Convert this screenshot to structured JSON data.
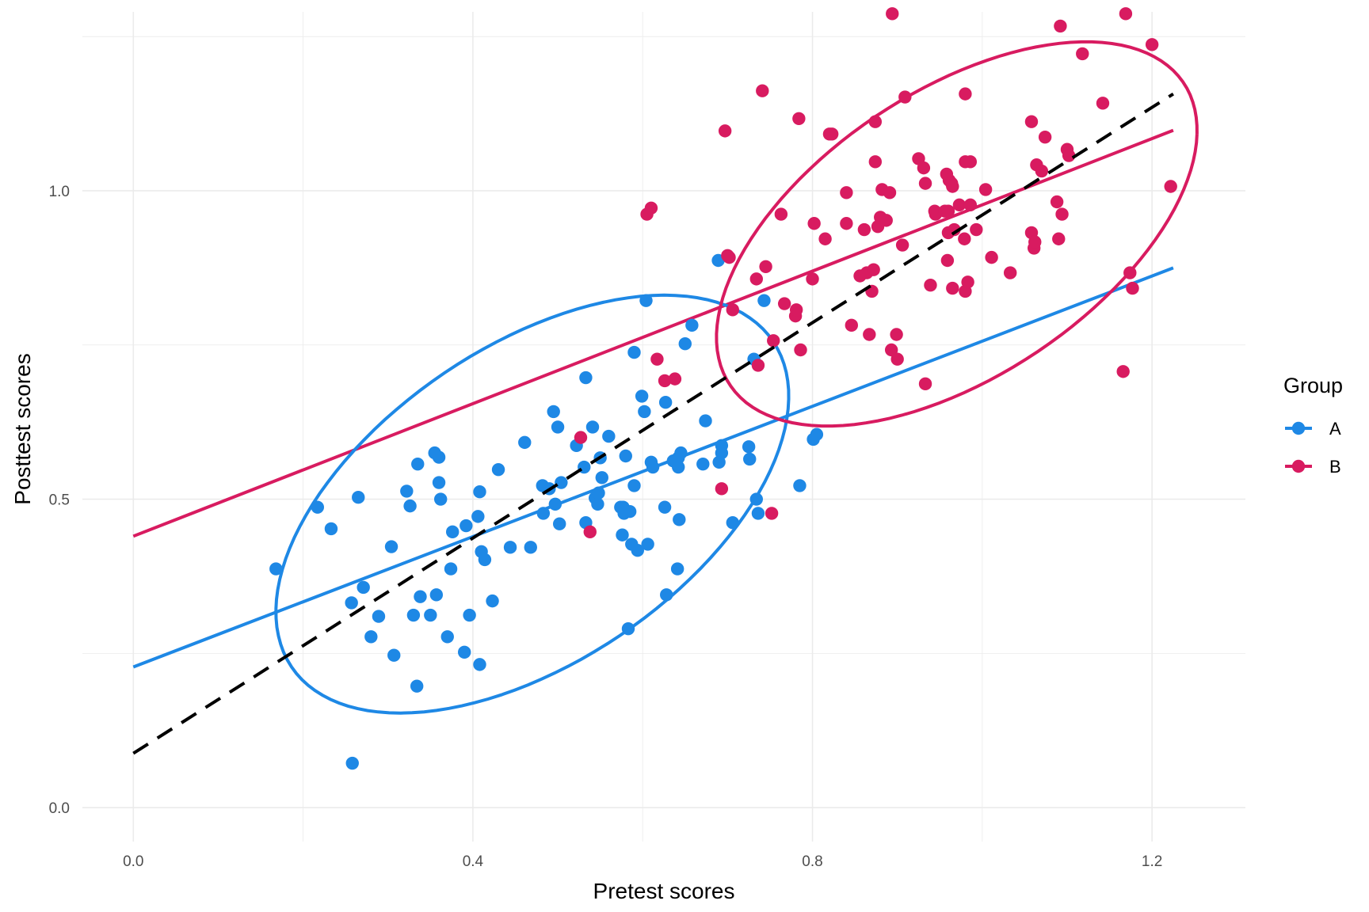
{
  "chart_data": {
    "type": "scatter",
    "title": "",
    "xlabel": "Pretest scores",
    "ylabel": "Posttest scores",
    "xlim": [
      -0.06,
      1.31
    ],
    "ylim": [
      -0.055,
      1.29
    ],
    "x_ticks": [
      0.0,
      0.4,
      0.8,
      1.2
    ],
    "x_tick_labels": [
      "0.0",
      "0.4",
      "0.8",
      "1.2"
    ],
    "y_ticks": [
      0.0,
      0.5,
      1.0
    ],
    "y_tick_labels": [
      "0.0",
      "0.5",
      "1.0"
    ],
    "grid": true,
    "legend": {
      "title": "Group",
      "position": "right"
    },
    "series": [
      {
        "name": "A",
        "color": "#1E88E5",
        "points": [
          [
            0.168,
            0.387
          ],
          [
            0.217,
            0.487
          ],
          [
            0.233,
            0.452
          ],
          [
            0.265,
            0.503
          ],
          [
            0.257,
            0.332
          ],
          [
            0.271,
            0.357
          ],
          [
            0.28,
            0.277
          ],
          [
            0.289,
            0.31
          ],
          [
            0.304,
            0.423
          ],
          [
            0.307,
            0.247
          ],
          [
            0.322,
            0.513
          ],
          [
            0.326,
            0.489
          ],
          [
            0.33,
            0.312
          ],
          [
            0.335,
            0.557
          ],
          [
            0.338,
            0.342
          ],
          [
            0.35,
            0.312
          ],
          [
            0.355,
            0.575
          ],
          [
            0.357,
            0.345
          ],
          [
            0.36,
            0.568
          ],
          [
            0.36,
            0.527
          ],
          [
            0.362,
            0.5
          ],
          [
            0.37,
            0.277
          ],
          [
            0.374,
            0.387
          ],
          [
            0.376,
            0.447
          ],
          [
            0.39,
            0.252
          ],
          [
            0.392,
            0.457
          ],
          [
            0.396,
            0.312
          ],
          [
            0.406,
            0.472
          ],
          [
            0.408,
            0.512
          ],
          [
            0.41,
            0.415
          ],
          [
            0.414,
            0.402
          ],
          [
            0.423,
            0.335
          ],
          [
            0.43,
            0.548
          ],
          [
            0.444,
            0.422
          ],
          [
            0.461,
            0.592
          ],
          [
            0.468,
            0.422
          ],
          [
            0.482,
            0.522
          ],
          [
            0.483,
            0.477
          ],
          [
            0.49,
            0.517
          ],
          [
            0.495,
            0.642
          ],
          [
            0.497,
            0.492
          ],
          [
            0.5,
            0.617
          ],
          [
            0.502,
            0.46
          ],
          [
            0.504,
            0.527
          ],
          [
            0.522,
            0.587
          ],
          [
            0.531,
            0.552
          ],
          [
            0.533,
            0.462
          ],
          [
            0.533,
            0.697
          ],
          [
            0.541,
            0.617
          ],
          [
            0.544,
            0.502
          ],
          [
            0.547,
            0.492
          ],
          [
            0.548,
            0.51
          ],
          [
            0.55,
            0.567
          ],
          [
            0.552,
            0.535
          ],
          [
            0.56,
            0.602
          ],
          [
            0.574,
            0.487
          ],
          [
            0.576,
            0.442
          ],
          [
            0.577,
            0.487
          ],
          [
            0.578,
            0.477
          ],
          [
            0.58,
            0.57
          ],
          [
            0.583,
            0.29
          ],
          [
            0.585,
            0.48
          ],
          [
            0.587,
            0.427
          ],
          [
            0.59,
            0.522
          ],
          [
            0.59,
            0.738
          ],
          [
            0.594,
            0.417
          ],
          [
            0.599,
            0.667
          ],
          [
            0.602,
            0.642
          ],
          [
            0.604,
            0.822
          ],
          [
            0.606,
            0.427
          ],
          [
            0.61,
            0.56
          ],
          [
            0.612,
            0.552
          ],
          [
            0.626,
            0.487
          ],
          [
            0.627,
            0.657
          ],
          [
            0.628,
            0.345
          ],
          [
            0.636,
            0.562
          ],
          [
            0.641,
            0.387
          ],
          [
            0.642,
            0.567
          ],
          [
            0.642,
            0.552
          ],
          [
            0.643,
            0.467
          ],
          [
            0.645,
            0.575
          ],
          [
            0.65,
            0.752
          ],
          [
            0.658,
            0.782
          ],
          [
            0.671,
            0.557
          ],
          [
            0.674,
            0.627
          ],
          [
            0.689,
            0.887
          ],
          [
            0.69,
            0.56
          ],
          [
            0.693,
            0.587
          ],
          [
            0.693,
            0.575
          ],
          [
            0.706,
            0.462
          ],
          [
            0.725,
            0.585
          ],
          [
            0.726,
            0.565
          ],
          [
            0.731,
            0.727
          ],
          [
            0.734,
            0.5
          ],
          [
            0.736,
            0.477
          ],
          [
            0.743,
            0.822
          ],
          [
            0.785,
            0.522
          ],
          [
            0.801,
            0.597
          ],
          [
            0.805,
            0.605
          ],
          [
            0.258,
            0.072
          ],
          [
            0.334,
            0.197
          ],
          [
            0.408,
            0.232
          ]
        ]
      },
      {
        "name": "B",
        "color": "#D81B60",
        "points": [
          [
            0.527,
            0.6
          ],
          [
            0.538,
            0.447
          ],
          [
            0.605,
            0.962
          ],
          [
            0.61,
            0.972
          ],
          [
            0.617,
            0.727
          ],
          [
            0.626,
            0.692
          ],
          [
            0.638,
            0.695
          ],
          [
            0.693,
            0.517
          ],
          [
            0.697,
            1.097
          ],
          [
            0.702,
            0.892
          ],
          [
            0.706,
            0.807
          ],
          [
            0.734,
            0.857
          ],
          [
            0.736,
            0.717
          ],
          [
            0.741,
            1.162
          ],
          [
            0.745,
            0.877
          ],
          [
            0.752,
            0.477
          ],
          [
            0.754,
            0.757
          ],
          [
            0.763,
            0.962
          ],
          [
            0.767,
            0.817
          ],
          [
            0.78,
            0.797
          ],
          [
            0.781,
            0.807
          ],
          [
            0.784,
            1.117
          ],
          [
            0.786,
            0.742
          ],
          [
            0.8,
            0.857
          ],
          [
            0.802,
            0.947
          ],
          [
            0.815,
            0.922
          ],
          [
            0.82,
            1.092
          ],
          [
            0.823,
            1.092
          ],
          [
            0.84,
            0.997
          ],
          [
            0.84,
            0.947
          ],
          [
            0.846,
            0.782
          ],
          [
            0.856,
            0.862
          ],
          [
            0.861,
            0.937
          ],
          [
            0.864,
            0.867
          ],
          [
            0.867,
            0.767
          ],
          [
            0.87,
            0.837
          ],
          [
            0.872,
            0.872
          ],
          [
            0.874,
            1.047
          ],
          [
            0.874,
            1.112
          ],
          [
            0.877,
            0.942
          ],
          [
            0.88,
            0.957
          ],
          [
            0.882,
            1.002
          ],
          [
            0.887,
            0.952
          ],
          [
            0.891,
            0.997
          ],
          [
            0.893,
            0.742
          ],
          [
            0.894,
            1.287
          ],
          [
            0.899,
            0.767
          ],
          [
            0.9,
            0.727
          ],
          [
            0.906,
            0.912
          ],
          [
            0.909,
            1.152
          ],
          [
            0.925,
            1.052
          ],
          [
            0.931,
            1.037
          ],
          [
            0.933,
            0.687
          ],
          [
            0.933,
            1.012
          ],
          [
            0.939,
            0.847
          ],
          [
            0.944,
            0.967
          ],
          [
            0.945,
            0.962
          ],
          [
            0.956,
            0.967
          ],
          [
            0.96,
            0.967
          ],
          [
            0.96,
            0.932
          ],
          [
            0.959,
            0.887
          ],
          [
            0.958,
            1.027
          ],
          [
            0.961,
            1.017
          ],
          [
            0.964,
            1.012
          ],
          [
            0.965,
            1.007
          ],
          [
            0.965,
            0.842
          ],
          [
            0.967,
            0.937
          ],
          [
            0.973,
            0.977
          ],
          [
            0.979,
            0.922
          ],
          [
            0.98,
            0.837
          ],
          [
            0.98,
            1.157
          ],
          [
            0.983,
            0.852
          ],
          [
            0.98,
            1.047
          ],
          [
            0.986,
            1.047
          ],
          [
            0.986,
            0.977
          ],
          [
            0.993,
            0.937
          ],
          [
            1.004,
            1.002
          ],
          [
            1.011,
            0.892
          ],
          [
            1.033,
            0.867
          ],
          [
            1.058,
            0.932
          ],
          [
            1.061,
            0.907
          ],
          [
            1.058,
            1.112
          ],
          [
            1.062,
            0.917
          ],
          [
            1.064,
            1.042
          ],
          [
            1.07,
            1.032
          ],
          [
            1.074,
            1.087
          ],
          [
            1.088,
            0.982
          ],
          [
            1.09,
            0.922
          ],
          [
            1.092,
            1.267
          ],
          [
            1.094,
            0.962
          ],
          [
            1.1,
            1.067
          ],
          [
            1.102,
            1.057
          ],
          [
            1.118,
            1.222
          ],
          [
            1.142,
            1.142
          ],
          [
            1.166,
            0.707
          ],
          [
            1.169,
            1.287
          ],
          [
            1.174,
            0.867
          ],
          [
            1.177,
            0.842
          ],
          [
            1.2,
            1.237
          ],
          [
            1.222,
            1.007
          ],
          [
            0.7,
            0.895
          ]
        ]
      }
    ],
    "overlays": [
      {
        "name": "A regression line",
        "series": "A",
        "type": "line",
        "x": [
          0.0,
          1.225
        ],
        "y": [
          0.228,
          0.875
        ]
      },
      {
        "name": "B regression line",
        "series": "B",
        "type": "line",
        "x": [
          0.0,
          1.225
        ],
        "y": [
          0.44,
          1.098
        ]
      },
      {
        "name": "overall fit",
        "type": "dashed-line",
        "color": "#000000",
        "x": [
          0.0,
          1.225
        ],
        "y": [
          0.088,
          1.157
        ]
      },
      {
        "name": "A ellipse",
        "series": "A",
        "type": "ellipse",
        "center": [
          0.47,
          0.492
        ],
        "axis_points": [
          [
            0.168,
            0.322
          ],
          [
            0.475,
            0.785
          ]
        ]
      },
      {
        "name": "B ellipse",
        "series": "B",
        "type": "ellipse",
        "center": [
          0.97,
          0.93
        ],
        "axis_points": [
          [
            1.253,
            1.092
          ],
          [
            0.976,
            1.196
          ]
        ]
      }
    ]
  }
}
